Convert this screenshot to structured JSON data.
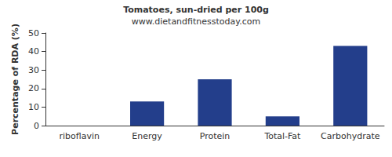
{
  "chart_data": {
    "type": "bar",
    "title": "Tomatoes, sun-dried per 100g",
    "subtitle": "www.dietandfitnesstoday.com",
    "ylabel": "Percentage of RDA (%)",
    "categories": [
      "riboflavin",
      "Energy",
      "Protein",
      "Total-Fat",
      "Carbohydrate"
    ],
    "values": [
      0,
      13,
      25,
      5,
      43
    ],
    "color": "#233e8b",
    "ylim": [
      0,
      50
    ],
    "yticks": [
      0,
      10,
      20,
      30,
      40,
      50
    ],
    "grid": false
  }
}
